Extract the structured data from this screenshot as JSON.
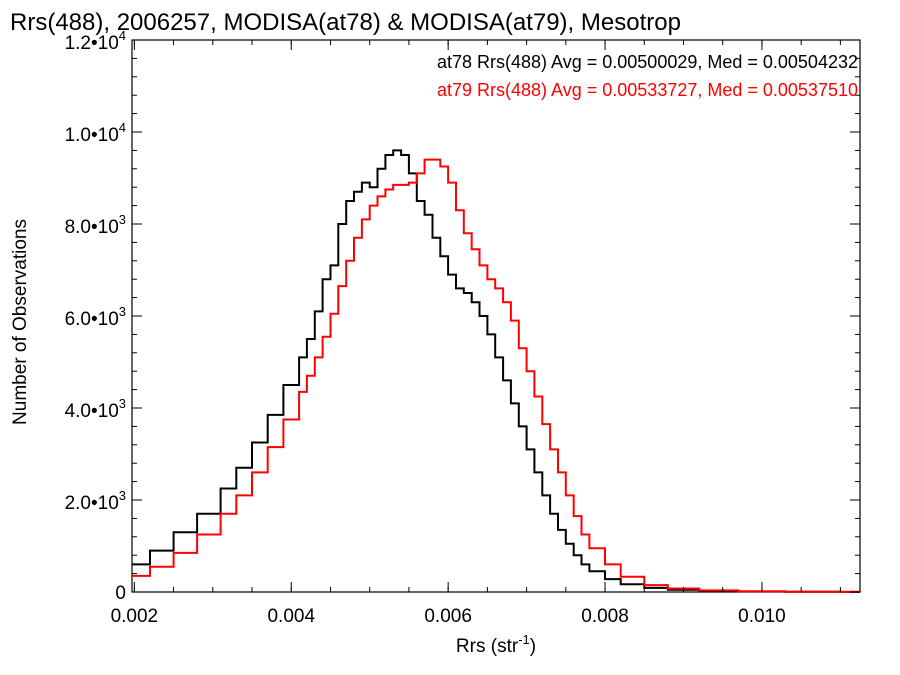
{
  "chart_data": {
    "type": "line",
    "title": "Rrs(488), 2006257, MODISA(at78) & MODISA(at79), Mesotrop",
    "xlabel_base": "Rrs (str",
    "xlabel_exp": "-1",
    "xlabel_close": ")",
    "ylabel": "Number of Observations",
    "xlim": [
      0.00197,
      0.01125
    ],
    "ylim": [
      0,
      12000
    ],
    "x_ticks": [
      0.002,
      0.004,
      0.006,
      0.008,
      0.01
    ],
    "x_tick_labels": [
      "0.002",
      "0.004",
      "0.006",
      "0.008",
      "0.010"
    ],
    "y_ticks": [
      {
        "value": 0,
        "mant": "0"
      },
      {
        "value": 2000,
        "mant": "2.0",
        "exp": "3"
      },
      {
        "value": 4000,
        "mant": "4.0",
        "exp": "3"
      },
      {
        "value": 6000,
        "mant": "6.0",
        "exp": "3"
      },
      {
        "value": 8000,
        "mant": "8.0",
        "exp": "3"
      },
      {
        "value": 10000,
        "mant": "1.0",
        "exp": "4"
      },
      {
        "value": 12000,
        "mant": "1.2",
        "exp": "4"
      }
    ],
    "annotations": [
      "at78 Rrs(488) Avg = 0.00500029, Med = 0.00504232",
      "at79 Rrs(488) Avg = 0.00533727, Med = 0.00537510"
    ],
    "series": [
      {
        "name": "at78",
        "color": "#000000",
        "x": [
          0.00197,
          0.0022,
          0.0025,
          0.0028,
          0.0031,
          0.0033,
          0.0035,
          0.0037,
          0.0039,
          0.0041,
          0.0042,
          0.0043,
          0.0044,
          0.0045,
          0.0046,
          0.0047,
          0.0048,
          0.0049,
          0.005,
          0.0051,
          0.0052,
          0.0053,
          0.0054,
          0.0055,
          0.0056,
          0.0057,
          0.0058,
          0.0059,
          0.006,
          0.0061,
          0.0062,
          0.0063,
          0.0064,
          0.0065,
          0.0066,
          0.0067,
          0.0068,
          0.0069,
          0.007,
          0.0071,
          0.0072,
          0.0073,
          0.0074,
          0.0075,
          0.0076,
          0.0077,
          0.0078,
          0.008,
          0.0082,
          0.0085,
          0.0088,
          0.0092,
          0.0097,
          0.0103,
          0.011,
          0.01125
        ],
        "y": [
          600,
          900,
          1300,
          1700,
          2250,
          2700,
          3250,
          3850,
          4500,
          5100,
          5500,
          6100,
          6800,
          7100,
          8000,
          8500,
          8700,
          8900,
          8800,
          9200,
          9500,
          9600,
          9500,
          9100,
          8500,
          8200,
          7700,
          7300,
          6900,
          6600,
          6500,
          6300,
          6000,
          5600,
          5100,
          4600,
          4100,
          3600,
          3100,
          2600,
          2100,
          1700,
          1350,
          1050,
          800,
          600,
          450,
          280,
          170,
          90,
          50,
          25,
          10,
          5,
          2,
          1
        ]
      },
      {
        "name": "at79",
        "color": "#ff0000",
        "x": [
          0.00197,
          0.0022,
          0.0025,
          0.0028,
          0.0031,
          0.0033,
          0.0035,
          0.0037,
          0.0039,
          0.0041,
          0.0042,
          0.0043,
          0.0044,
          0.0045,
          0.0046,
          0.0047,
          0.0048,
          0.0049,
          0.005,
          0.0051,
          0.0052,
          0.0053,
          0.0054,
          0.0055,
          0.0056,
          0.0057,
          0.0058,
          0.0059,
          0.006,
          0.0061,
          0.0062,
          0.0063,
          0.0064,
          0.0065,
          0.0066,
          0.0067,
          0.0068,
          0.0069,
          0.007,
          0.0071,
          0.0072,
          0.0073,
          0.0074,
          0.0075,
          0.0076,
          0.0077,
          0.0078,
          0.008,
          0.0082,
          0.0085,
          0.0088,
          0.0092,
          0.0097,
          0.0103,
          0.011,
          0.01125
        ],
        "y": [
          350,
          550,
          850,
          1250,
          1700,
          2100,
          2600,
          3150,
          3750,
          4350,
          4700,
          5100,
          5550,
          6050,
          6650,
          7200,
          7700,
          8100,
          8400,
          8600,
          8750,
          8850,
          8850,
          8900,
          9100,
          9400,
          9400,
          9250,
          8900,
          8300,
          7800,
          7450,
          7100,
          6800,
          6600,
          6300,
          5900,
          5300,
          4800,
          4250,
          3650,
          3100,
          2600,
          2100,
          1650,
          1250,
          950,
          600,
          330,
          150,
          75,
          35,
          15,
          6,
          3,
          1
        ]
      }
    ]
  }
}
